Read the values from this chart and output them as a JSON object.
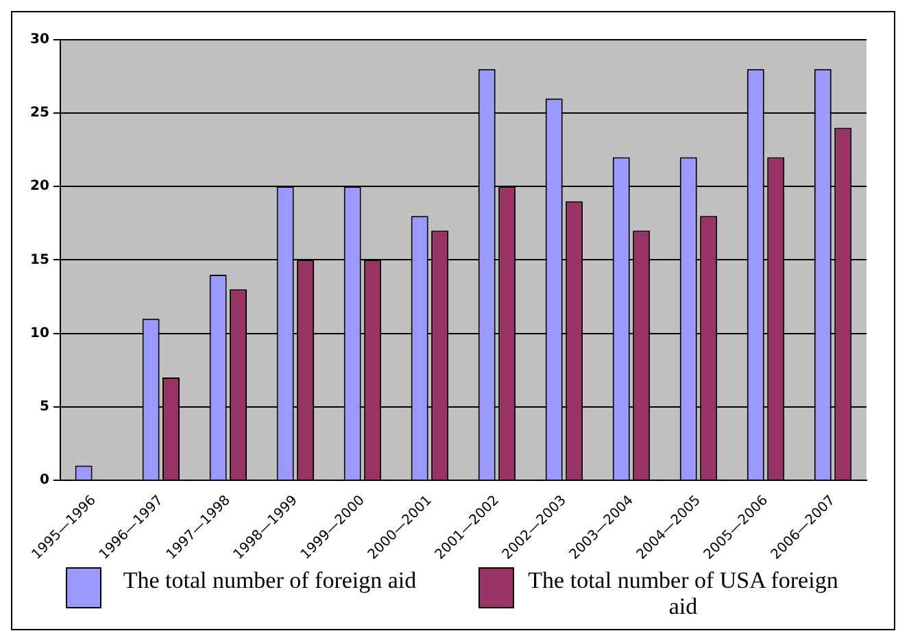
{
  "chart_data": {
    "type": "bar",
    "categories": [
      "1995—1996",
      "1996—1997",
      "1997—1998",
      "1998—1999",
      "1999—2000",
      "2000—2001",
      "2001—2002",
      "2002—2003",
      "2003—2004",
      "2004—2005",
      "2005—2006",
      "2006—2007"
    ],
    "series": [
      {
        "name": "The total number of foreign aid",
        "color": "#9999ff",
        "values": [
          1,
          11,
          14,
          20,
          20,
          18,
          28,
          26,
          22,
          22,
          28,
          28
        ]
      },
      {
        "name": "The total number of USA foreign aid",
        "color": "#993366",
        "values": [
          null,
          7,
          13,
          15,
          15,
          17,
          20,
          19,
          17,
          18,
          22,
          24
        ]
      }
    ],
    "ylim": [
      0,
      30
    ],
    "yticks": [
      0,
      5,
      10,
      15,
      20,
      25,
      30
    ],
    "grid": "y",
    "legend": "bottom"
  }
}
